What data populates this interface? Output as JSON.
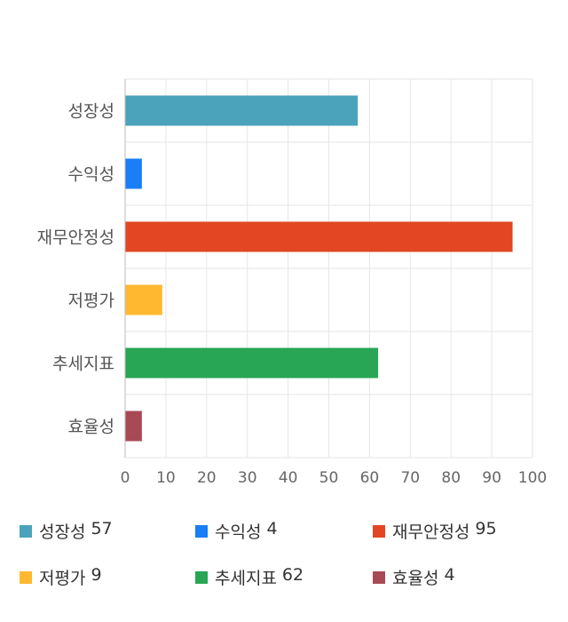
{
  "chart_data": {
    "type": "bar",
    "orientation": "horizontal",
    "categories": [
      "성장성",
      "수익성",
      "재무안정성",
      "저평가",
      "추세지표",
      "효율성"
    ],
    "values": [
      57,
      4,
      95,
      9,
      62,
      4
    ],
    "colors": [
      "#4aa3bb",
      "#1a7ef7",
      "#e24623",
      "#ffb830",
      "#28a655",
      "#a84a55"
    ],
    "xlim": [
      0,
      100
    ],
    "x_ticks": [
      "0",
      "10",
      "20",
      "30",
      "40",
      "50",
      "60",
      "70",
      "80",
      "90",
      "100"
    ],
    "grid": true,
    "legend_position": "bottom"
  },
  "legend": [
    {
      "label": "성장성",
      "value": "57",
      "color": "#4aa3bb"
    },
    {
      "label": "수익성",
      "value": "4",
      "color": "#1a7ef7"
    },
    {
      "label": "재무안정성",
      "value": "95",
      "color": "#e24623"
    },
    {
      "label": "저평가",
      "value": "9",
      "color": "#ffb830"
    },
    {
      "label": "추세지표",
      "value": "62",
      "color": "#28a655"
    },
    {
      "label": "효율성",
      "value": "4",
      "color": "#a84a55"
    }
  ]
}
